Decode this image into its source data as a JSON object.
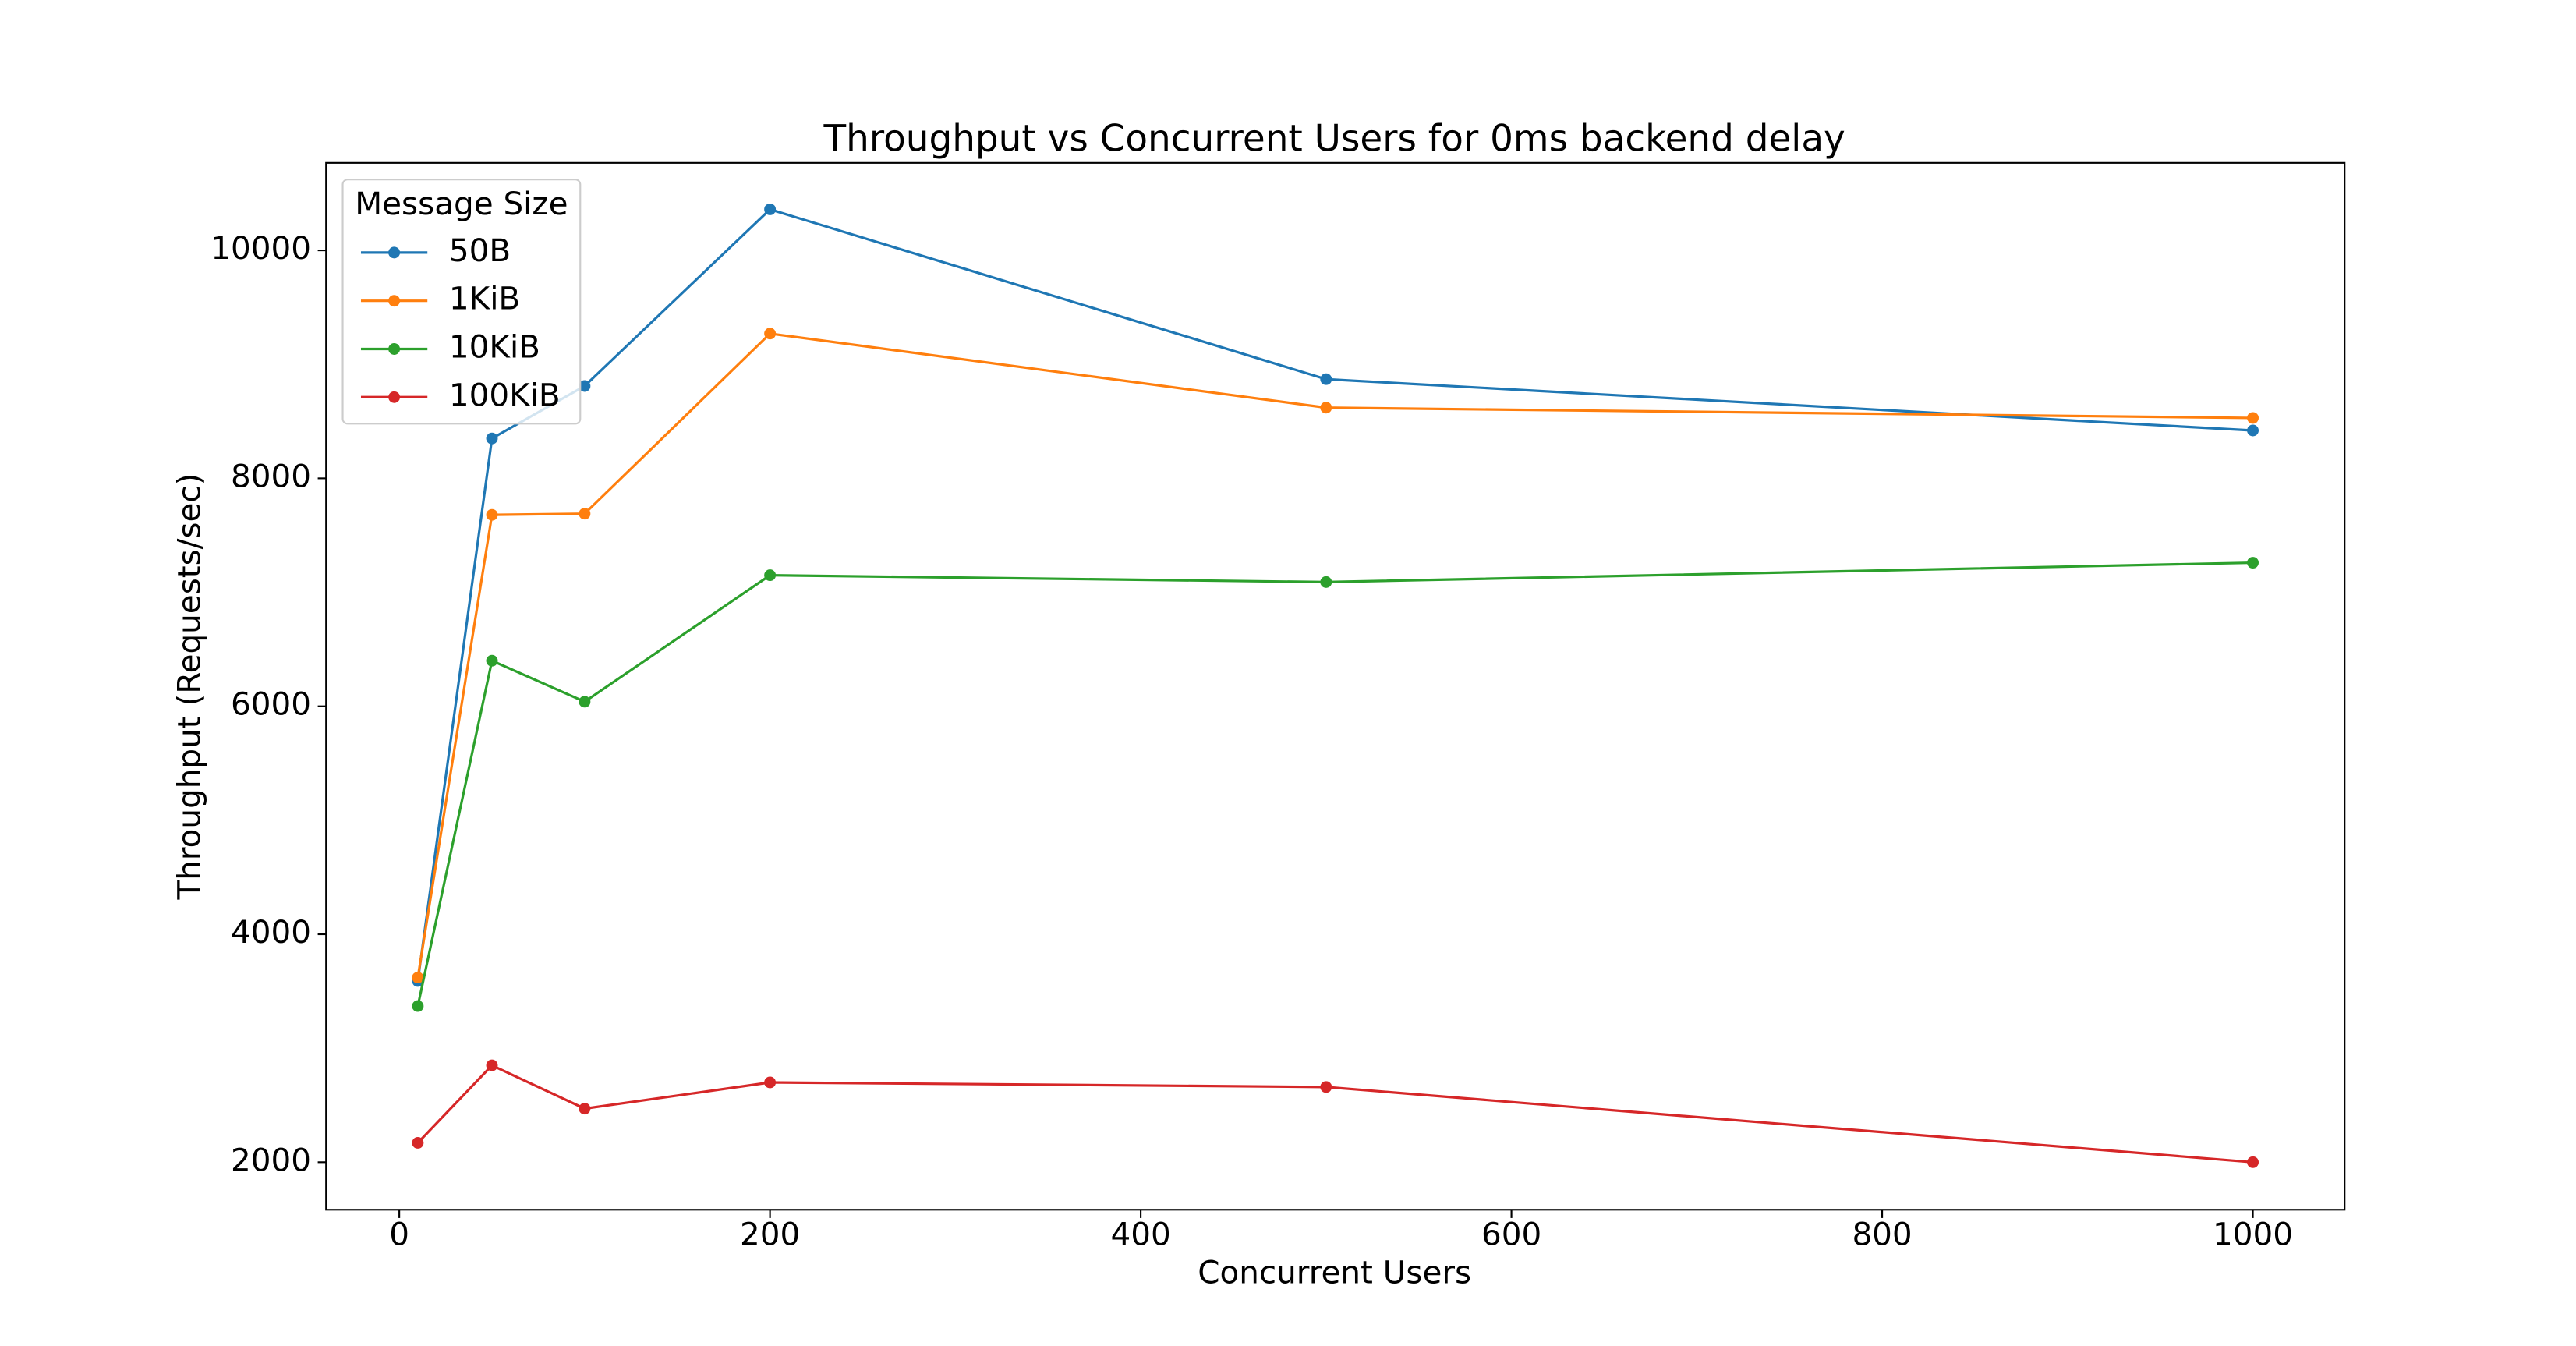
{
  "chart_data": {
    "type": "line",
    "title": "Throughput vs Concurrent Users for 0ms backend delay",
    "x_label": "Concurrent Users",
    "y_label": "Throughput (Requests/sec)",
    "x": [
      10,
      50,
      100,
      200,
      500,
      1000
    ],
    "series": [
      {
        "name": "50B",
        "color": "#1f77b4",
        "values": [
          3590,
          8350,
          8810,
          10360,
          8870,
          8420
        ]
      },
      {
        "name": "1KiB",
        "color": "#ff7f0e",
        "values": [
          3620,
          7680,
          7690,
          9270,
          8620,
          8530
        ]
      },
      {
        "name": "10KiB",
        "color": "#2ca02c",
        "values": [
          3370,
          6400,
          6040,
          7150,
          7090,
          7260
        ]
      },
      {
        "name": "100KiB",
        "color": "#d62728",
        "values": [
          2170,
          2850,
          2470,
          2700,
          2660,
          2000
        ]
      }
    ],
    "xlim": [
      -39.5,
      1049.5
    ],
    "xticks": [
      0,
      200,
      400,
      600,
      800,
      1000
    ],
    "ylim": [
      1583,
      10768
    ],
    "yticks": [
      2000,
      4000,
      6000,
      8000,
      10000
    ],
    "legend": {
      "title": "Message Size",
      "position": "upper left"
    },
    "grid": false
  }
}
